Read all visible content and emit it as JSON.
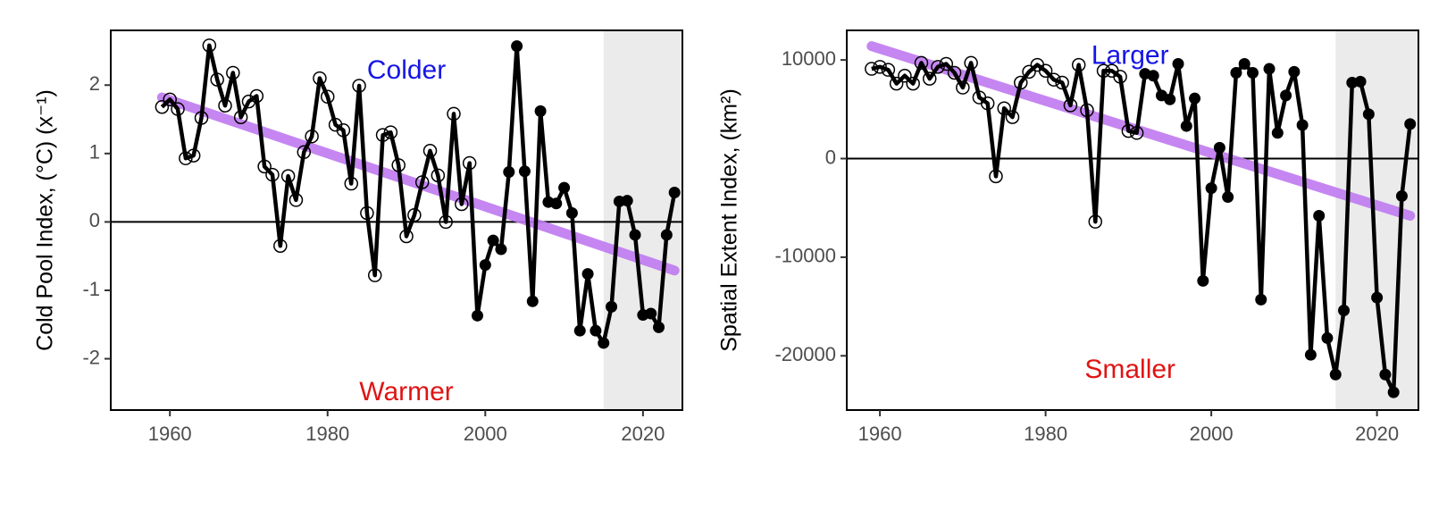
{
  "chart_data": [
    {
      "type": "line",
      "ylabel": "Cold Pool Index, (°C) (x⁻¹)",
      "xlim": [
        1952.5,
        2025
      ],
      "ylim": [
        -2.75,
        2.8
      ],
      "x_ticks": [
        1960,
        1980,
        2000,
        2020
      ],
      "y_ticks": [
        -2,
        -1,
        0,
        1,
        2
      ],
      "x_tick_labels": [
        "1960",
        "1980",
        "2000",
        "2020"
      ],
      "y_tick_labels": [
        "-2",
        "-1",
        "0",
        "1",
        "2"
      ],
      "reference_line_y": 0,
      "shaded_x_range": [
        2015,
        2025
      ],
      "annotations": [
        {
          "text": "Colder",
          "x": 1990,
          "y": 2.2,
          "color": "#1515e6"
        },
        {
          "text": "Warmer",
          "x": 1990,
          "y": -2.5,
          "color": "#e01414"
        }
      ],
      "trend": {
        "x": [
          1959,
          2024
        ],
        "y": [
          1.82,
          -0.71
        ],
        "color": "#bf7af0"
      },
      "x": [
        1959,
        1960,
        1961,
        1962,
        1963,
        1964,
        1965,
        1966,
        1967,
        1968,
        1969,
        1970,
        1971,
        1972,
        1973,
        1974,
        1975,
        1976,
        1977,
        1978,
        1979,
        1980,
        1981,
        1982,
        1983,
        1984,
        1985,
        1986,
        1987,
        1988,
        1989,
        1990,
        1991,
        1992,
        1993,
        1994,
        1995,
        1996,
        1997,
        1998,
        1999,
        2000,
        2001,
        2002,
        2003,
        2004,
        2005,
        2006,
        2007,
        2008,
        2009,
        2010,
        2011,
        2012,
        2013,
        2014,
        2015,
        2016,
        2017,
        2018,
        2019,
        2020,
        2021,
        2022,
        2023,
        2024
      ],
      "y": [
        1.68,
        1.79,
        1.65,
        0.93,
        0.97,
        1.52,
        2.58,
        2.08,
        1.7,
        2.18,
        1.53,
        1.76,
        1.84,
        0.81,
        0.69,
        -0.35,
        0.67,
        0.32,
        1.02,
        1.25,
        2.1,
        1.83,
        1.42,
        1.34,
        0.56,
        1.99,
        0.13,
        -0.78,
        1.27,
        1.31,
        0.83,
        -0.21,
        0.1,
        0.58,
        1.04,
        0.68,
        0.0,
        1.58,
        0.26,
        0.86,
        -1.37,
        -0.63,
        -0.27,
        -0.4,
        0.73,
        2.57,
        0.74,
        -1.16,
        1.62,
        0.29,
        0.27,
        0.5,
        0.13,
        -1.59,
        -0.76,
        -1.59,
        -1.77,
        -1.24,
        0.3,
        0.31,
        -0.19,
        -1.36,
        -1.34,
        -1.54,
        -0.19,
        0.43
      ],
      "open_marker_until": 1998
    },
    {
      "type": "line",
      "ylabel": "Spatial Extent Index,  (km²)",
      "xlim": [
        1956,
        2025
      ],
      "ylim": [
        -25500,
        13000
      ],
      "x_ticks": [
        1960,
        1980,
        2000,
        2020
      ],
      "y_ticks": [
        -20000,
        -10000,
        0,
        10000
      ],
      "x_tick_labels": [
        "1960",
        "1980",
        "2000",
        "2020"
      ],
      "y_tick_labels": [
        "-20000",
        "-10000",
        "0",
        "10000"
      ],
      "reference_line_y": 0,
      "shaded_x_range": [
        2015,
        2025
      ],
      "annotations": [
        {
          "text": "Larger",
          "x": 1990.2,
          "y": 10300,
          "color": "#1515e6"
        },
        {
          "text": "Smaller",
          "x": 1990.2,
          "y": -21500,
          "color": "#e01414"
        }
      ],
      "trend": {
        "x": [
          1959,
          2024
        ],
        "y": [
          11400,
          -5800
        ],
        "color": "#bf7af0"
      },
      "x": [
        1959,
        1960,
        1961,
        1962,
        1963,
        1964,
        1965,
        1966,
        1967,
        1968,
        1969,
        1970,
        1971,
        1972,
        1973,
        1974,
        1975,
        1976,
        1977,
        1978,
        1979,
        1980,
        1981,
        1982,
        1983,
        1984,
        1985,
        1986,
        1987,
        1988,
        1989,
        1990,
        1991,
        1992,
        1993,
        1994,
        1995,
        1996,
        1997,
        1998,
        1999,
        2000,
        2001,
        2002,
        2003,
        2004,
        2005,
        2006,
        2007,
        2008,
        2009,
        2010,
        2011,
        2012,
        2013,
        2014,
        2015,
        2016,
        2017,
        2018,
        2019,
        2020,
        2021,
        2022,
        2023,
        2024
      ],
      "y": [
        9100,
        9300,
        9000,
        7600,
        8400,
        7600,
        9700,
        8100,
        9300,
        9600,
        8700,
        7200,
        9700,
        6200,
        5600,
        -1800,
        5100,
        4200,
        7700,
        8800,
        9500,
        8900,
        8000,
        7700,
        5400,
        9500,
        4900,
        -6400,
        8900,
        8900,
        8300,
        2800,
        2600,
        8600,
        8400,
        6400,
        6000,
        9600,
        3300,
        6100,
        -12400,
        -3000,
        1100,
        -3900,
        8700,
        9600,
        8700,
        -14300,
        9100,
        2600,
        6400,
        8800,
        3400,
        -19900,
        -5800,
        -18200,
        -21900,
        -15400,
        7700,
        7800,
        4500,
        -14100,
        -21900,
        -23700,
        -3800,
        3500
      ],
      "open_marker_until": 1991
    }
  ]
}
